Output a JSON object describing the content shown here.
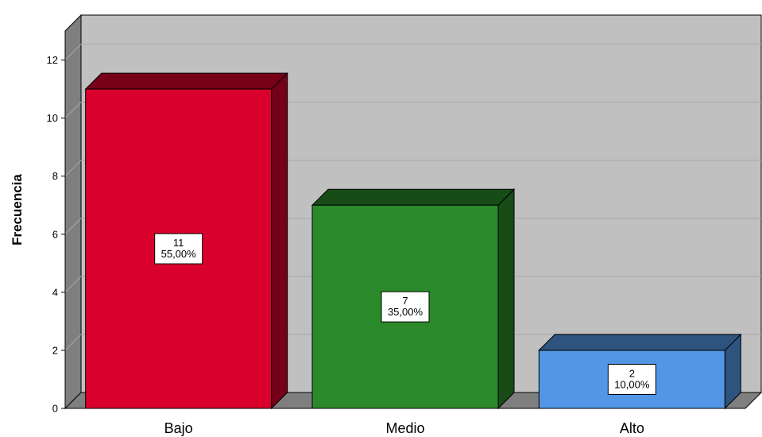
{
  "chart_data": {
    "type": "bar",
    "style": "3d",
    "categories": [
      "Bajo",
      "Medio",
      "Alto"
    ],
    "values": [
      11,
      7,
      2
    ],
    "percent_labels": [
      "55,00%",
      "35,00%",
      "10,00%"
    ],
    "colors": [
      "#d9002d",
      "#2a8a2a",
      "#5296e5"
    ],
    "ylabel": "Frecuencia",
    "ylim": [
      0,
      13
    ],
    "yticks": [
      "0",
      "2",
      "4",
      "6",
      "8",
      "10",
      "12"
    ],
    "grid": true,
    "legend": "none"
  }
}
